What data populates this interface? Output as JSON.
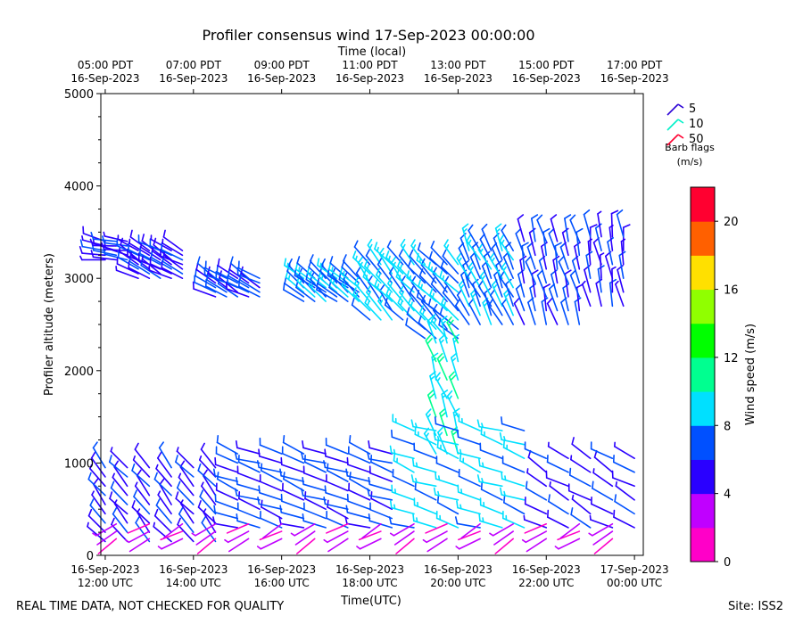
{
  "chart_data": {
    "type": "wind-barb",
    "title": "Profiler consensus wind 17-Sep-2023 00:00:00",
    "xlabel": "Time(UTC)",
    "xlabel_top": "Time (local)",
    "ylabel": "Profiler altitude (meters)",
    "ylim": [
      0,
      5000
    ],
    "y_ticks": [
      0,
      1000,
      2000,
      3000,
      4000,
      5000
    ],
    "xlim_hours_utc": [
      11.9,
      24.2
    ],
    "x_ticks_bottom": [
      {
        "h": 12,
        "date": "16-Sep-2023",
        "time": "12:00 UTC"
      },
      {
        "h": 14,
        "date": "16-Sep-2023",
        "time": "14:00 UTC"
      },
      {
        "h": 16,
        "date": "16-Sep-2023",
        "time": "16:00 UTC"
      },
      {
        "h": 18,
        "date": "16-Sep-2023",
        "time": "18:00 UTC"
      },
      {
        "h": 20,
        "date": "16-Sep-2023",
        "time": "20:00 UTC"
      },
      {
        "h": 22,
        "date": "16-Sep-2023",
        "time": "22:00 UTC"
      },
      {
        "h": 24,
        "date": "17-Sep-2023",
        "time": "00:00 UTC"
      }
    ],
    "x_ticks_top": [
      {
        "h": 12,
        "time": "05:00 PDT",
        "date": "16-Sep-2023"
      },
      {
        "h": 14,
        "time": "07:00 PDT",
        "date": "16-Sep-2023"
      },
      {
        "h": 16,
        "time": "09:00 PDT",
        "date": "16-Sep-2023"
      },
      {
        "h": 18,
        "time": "11:00 PDT",
        "date": "16-Sep-2023"
      },
      {
        "h": 20,
        "time": "13:00 PDT",
        "date": "16-Sep-2023"
      },
      {
        "h": 22,
        "time": "15:00 PDT",
        "date": "16-Sep-2023"
      },
      {
        "h": 24,
        "time": "17:00 PDT",
        "date": "16-Sep-2023"
      }
    ],
    "barb_legend": {
      "title": "Barb flags",
      "units": "(m/s)",
      "entries": [
        {
          "label": "5",
          "color": "#2a00d5"
        },
        {
          "label": "10",
          "color": "#00f0c8"
        },
        {
          "label": "50",
          "color": "#ff0030"
        }
      ]
    },
    "colorbar": {
      "label": "Wind speed (m/s)",
      "min": 0,
      "max": 22,
      "ticks": [
        0,
        4,
        8,
        12,
        16,
        20
      ],
      "colors": [
        "#ff00c8",
        "#c000ff",
        "#2a00ff",
        "#0050ff",
        "#00e0ff",
        "#00ff90",
        "#00ff00",
        "#90ff00",
        "#ffe000",
        "#ff6000",
        "#ff0030"
      ]
    },
    "barb_groups": [
      {
        "t": [
          12.0,
          12.25,
          12.5
        ],
        "alts": [
          3200,
          3250,
          3300,
          3350,
          3400
        ],
        "spd": 5,
        "dir": 280
      },
      {
        "t": [
          12.75,
          13.0,
          13.25,
          13.5,
          13.75
        ],
        "alts": [
          3000,
          3050,
          3100,
          3150,
          3200,
          3250,
          3300
        ],
        "spd": 5,
        "dir": 300
      },
      {
        "t": [
          14.5,
          14.75,
          15.0,
          15.25,
          15.5
        ],
        "alts": [
          2800,
          2850,
          2900,
          2950,
          3000
        ],
        "spd": 6,
        "dir": 300
      },
      {
        "t": [
          16.5,
          16.75,
          17.0,
          17.25,
          17.5,
          17.75
        ],
        "alts": [
          2750,
          2800,
          2850,
          2900,
          2950,
          3000
        ],
        "spd": 7,
        "dir": 310
      },
      {
        "t": [
          18.0,
          18.25,
          18.5,
          18.75,
          19.0
        ],
        "alts": [
          2550,
          2650,
          2750,
          2850,
          2950,
          3050,
          3150
        ],
        "spd": 8,
        "dir": 320
      },
      {
        "t": [
          19.25,
          19.5,
          19.75,
          20.0
        ],
        "alts": [
          2350,
          2450,
          2550,
          2650,
          2750,
          2850,
          2950,
          3050,
          3150
        ],
        "spd": 7,
        "dir": 315
      },
      {
        "t": [
          20.25,
          20.5,
          20.75,
          21.0,
          21.25
        ],
        "alts": [
          2500,
          2600,
          2700,
          2800,
          2900,
          3000,
          3100,
          3200,
          3300
        ],
        "spd": 7,
        "dir": 335
      },
      {
        "t": [
          21.5,
          21.75,
          22.0,
          22.25,
          22.5,
          22.75
        ],
        "alts": [
          2500,
          2650,
          2800,
          2950,
          3100,
          3250,
          3400
        ],
        "spd": 6,
        "dir": 345
      },
      {
        "t": [
          23.0,
          23.25,
          23.5,
          23.75
        ],
        "alts": [
          2700,
          2850,
          3000,
          3150,
          3300,
          3450
        ],
        "spd": 5,
        "dir": 350
      },
      {
        "t": [
          19.5,
          19.75,
          20.0
        ],
        "alts": [
          1100,
          1300,
          1500,
          1700,
          1900,
          2100,
          2300
        ],
        "spd": 9,
        "dir": 340
      },
      {
        "t": [
          12.0,
          12.5,
          13.0,
          13.5,
          14.0,
          14.5
        ],
        "alts": [
          150,
          250,
          350,
          450,
          550,
          650,
          750,
          850,
          950
        ],
        "spd": 5,
        "dir": 320
      },
      {
        "t": [
          15.0,
          15.5,
          16.0,
          16.5,
          17.0,
          17.5,
          18.0,
          18.5
        ],
        "alts": [
          300,
          400,
          500,
          600,
          700,
          800,
          900,
          1000,
          1100
        ],
        "spd": 6,
        "dir": 290
      },
      {
        "t": [
          19.0,
          19.5,
          20.0,
          20.5,
          21.0,
          21.5
        ],
        "alts": [
          300,
          450,
          600,
          750,
          900,
          1050,
          1200,
          1350
        ],
        "spd": 8,
        "dir": 290
      },
      {
        "t": [
          22.0,
          22.5,
          23.0,
          23.5,
          24.0
        ],
        "alts": [
          300,
          450,
          600,
          750,
          900,
          1050
        ],
        "spd": 5,
        "dir": 300
      },
      {
        "t": [
          12.25,
          13.0,
          13.75,
          14.5,
          15.25,
          16.0,
          16.75,
          17.5,
          18.25,
          19.0,
          19.75,
          20.5,
          21.25,
          22.0,
          22.75,
          23.5
        ],
        "alts": [
          180,
          260,
          340
        ],
        "spd": 2,
        "dir": 240
      }
    ]
  },
  "footer": {
    "left_text": "REAL TIME DATA, NOT CHECKED FOR QUALITY",
    "right_text": "Site: ISS2"
  }
}
